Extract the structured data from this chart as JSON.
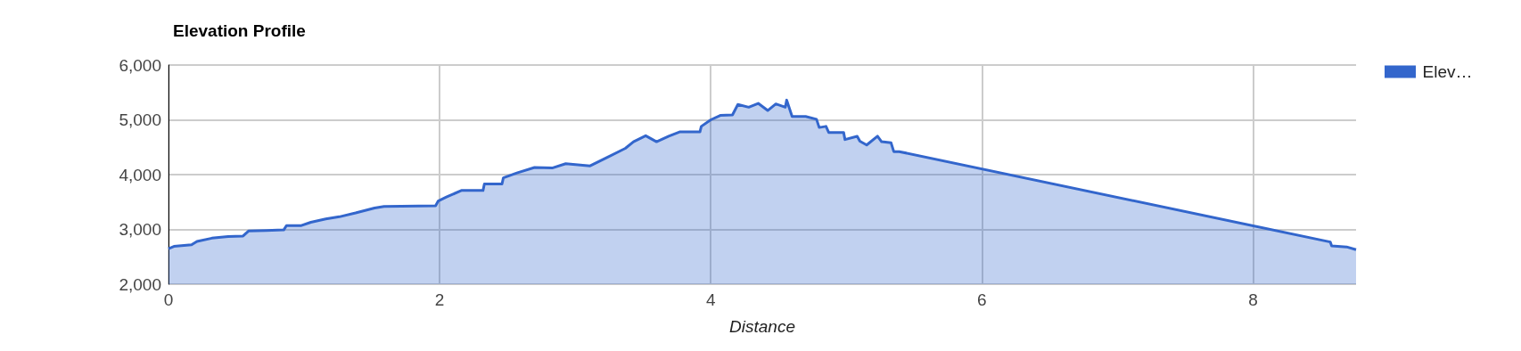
{
  "chart_data": {
    "type": "area",
    "title": "Elevation Profile",
    "xlabel": "Distance",
    "legend": "top right",
    "grid": true,
    "marker": "none",
    "line_style": "solid",
    "xlim": [
      0,
      8.76
    ],
    "xticks": [
      0,
      2,
      4,
      6,
      8
    ],
    "ylim": [
      2000,
      6000
    ],
    "yticks": [
      {
        "value": 2000,
        "label": "2,000"
      },
      {
        "value": 3000,
        "label": "3,000"
      },
      {
        "value": 4000,
        "label": "4,000"
      },
      {
        "value": 5000,
        "label": "5,000"
      },
      {
        "value": 6000,
        "label": "6,000"
      }
    ],
    "series": [
      {
        "name": "Elev…",
        "color": "#3366cc",
        "x": [
          0,
          0.04,
          0.17,
          0.21,
          0.32,
          0.44,
          0.55,
          0.59,
          0.72,
          0.85,
          0.87,
          0.98,
          1.05,
          1.16,
          1.26,
          1.38,
          1.52,
          1.59,
          1.97,
          1.99,
          2.05,
          2.16,
          2.32,
          2.33,
          2.46,
          2.47,
          2.57,
          2.7,
          2.83,
          2.93,
          3.11,
          3.24,
          3.37,
          3.43,
          3.52,
          3.6,
          3.69,
          3.77,
          3.92,
          3.93,
          4.0,
          4.07,
          4.16,
          4.2,
          4.28,
          4.35,
          4.42,
          4.48,
          4.55,
          4.56,
          4.6,
          4.7,
          4.78,
          4.8,
          4.85,
          4.87,
          4.98,
          4.99,
          5.08,
          5.1,
          5.15,
          5.23,
          5.26,
          5.33,
          5.35,
          5.39,
          8.57,
          8.58,
          8.69,
          8.76
        ],
        "values": [
          2650,
          2690,
          2720,
          2780,
          2840,
          2870,
          2880,
          2970,
          2980,
          2990,
          3070,
          3070,
          3130,
          3190,
          3230,
          3300,
          3390,
          3420,
          3430,
          3520,
          3590,
          3710,
          3710,
          3830,
          3830,
          3940,
          4030,
          4130,
          4120,
          4200,
          4160,
          4320,
          4480,
          4600,
          4710,
          4600,
          4700,
          4780,
          4780,
          4880,
          5000,
          5080,
          5090,
          5280,
          5230,
          5300,
          5170,
          5290,
          5230,
          5360,
          5060,
          5060,
          5010,
          4860,
          4880,
          4770,
          4770,
          4640,
          4700,
          4610,
          4540,
          4700,
          4600,
          4580,
          4420,
          4420,
          2770,
          2700,
          2680,
          2630
        ]
      }
    ]
  }
}
